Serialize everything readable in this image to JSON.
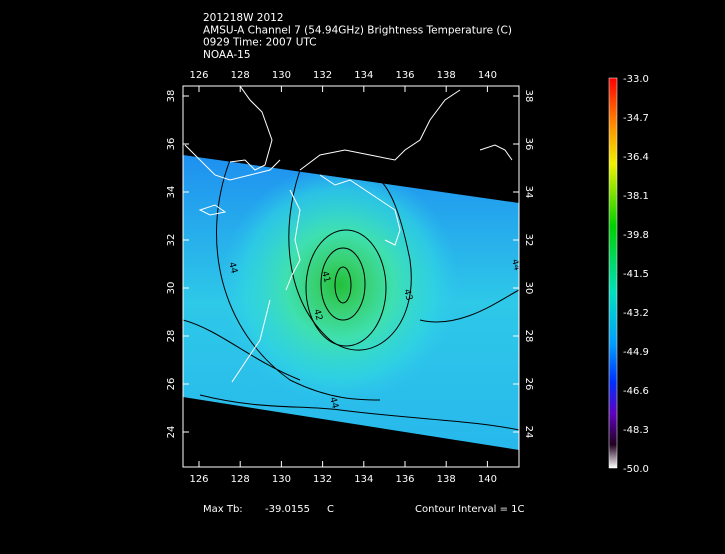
{
  "header": {
    "lines": [
      "201218W 2012",
      "AMSU-A Channel 7 (54.94GHz) Brightness Temperature (C)",
      "0929 Time: 2007 UTC",
      "NOAA-15"
    ]
  },
  "map": {
    "lon_labels": [
      "126",
      "128",
      "130",
      "132",
      "134",
      "136",
      "138",
      "140"
    ],
    "lat_labels": [
      "24",
      "26",
      "28",
      "30",
      "32",
      "34",
      "36",
      "38"
    ],
    "contour_labels": [
      "41",
      "42",
      "43",
      "44",
      "44",
      "44"
    ]
  },
  "colorbar": {
    "labels": [
      "-33.0",
      "-34.7",
      "-36.4",
      "-38.1",
      "-39.8",
      "-41.5",
      "-43.2",
      "-44.9",
      "-46.6",
      "-48.3",
      "-50.0"
    ]
  },
  "footer": {
    "max_label": "Max Tb:",
    "max_value": "-39.0155",
    "max_unit": "C",
    "contour_interval": "Contour Interval = 1C"
  }
}
